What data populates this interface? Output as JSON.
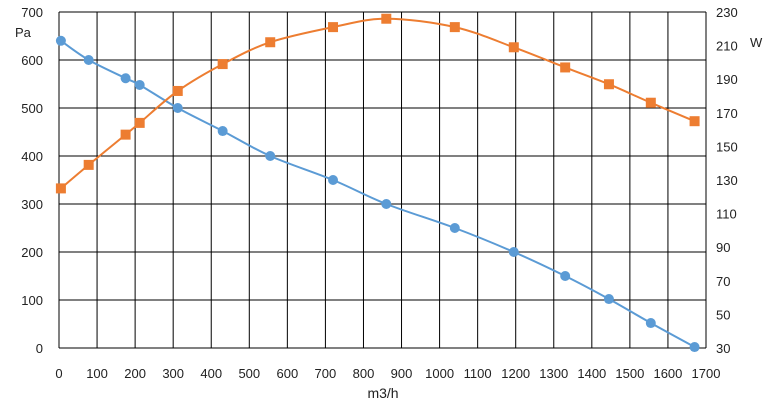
{
  "chart_data": {
    "type": "line",
    "xlabel": "m3/h",
    "xlim": [
      0,
      1700
    ],
    "x_ticks": [
      "0",
      "100",
      "200",
      "300",
      "400",
      "500",
      "600",
      "700",
      "800",
      "900",
      "1000",
      "1100",
      "1200",
      "1300",
      "1400",
      "1500",
      "1600",
      "1700"
    ],
    "y_left": {
      "unit": "Pa",
      "lim": [
        0,
        700
      ],
      "ticks": [
        "0",
        "100",
        "200",
        "300",
        "400",
        "500",
        "600",
        "700"
      ]
    },
    "y_right": {
      "unit": "W",
      "lim": [
        30,
        230
      ],
      "ticks": [
        "30",
        "50",
        "70",
        "90",
        "110",
        "130",
        "150",
        "170",
        "190",
        "210",
        "230"
      ]
    },
    "grid": true,
    "series": [
      {
        "axis": "left",
        "marker": "circle",
        "color": "#5b9bd5",
        "points": [
          {
            "x": 5,
            "y": 640
          },
          {
            "x": 78,
            "y": 600
          },
          {
            "x": 175,
            "y": 562
          },
          {
            "x": 212,
            "y": 548
          },
          {
            "x": 312,
            "y": 500
          },
          {
            "x": 430,
            "y": 452
          },
          {
            "x": 555,
            "y": 400
          },
          {
            "x": 720,
            "y": 350
          },
          {
            "x": 860,
            "y": 300
          },
          {
            "x": 1040,
            "y": 250
          },
          {
            "x": 1195,
            "y": 200
          },
          {
            "x": 1330,
            "y": 150
          },
          {
            "x": 1445,
            "y": 102
          },
          {
            "x": 1555,
            "y": 52
          },
          {
            "x": 1670,
            "y": 2
          }
        ]
      },
      {
        "axis": "right",
        "marker": "square",
        "color": "#ed7d31",
        "points": [
          {
            "x": 5,
            "y": 125
          },
          {
            "x": 78,
            "y": 139
          },
          {
            "x": 175,
            "y": 157
          },
          {
            "x": 212,
            "y": 164
          },
          {
            "x": 312,
            "y": 183
          },
          {
            "x": 430,
            "y": 199
          },
          {
            "x": 555,
            "y": 212
          },
          {
            "x": 720,
            "y": 221
          },
          {
            "x": 860,
            "y": 226
          },
          {
            "x": 1040,
            "y": 221
          },
          {
            "x": 1195,
            "y": 209
          },
          {
            "x": 1330,
            "y": 197
          },
          {
            "x": 1445,
            "y": 187
          },
          {
            "x": 1555,
            "y": 176
          },
          {
            "x": 1670,
            "y": 165
          }
        ]
      }
    ]
  }
}
